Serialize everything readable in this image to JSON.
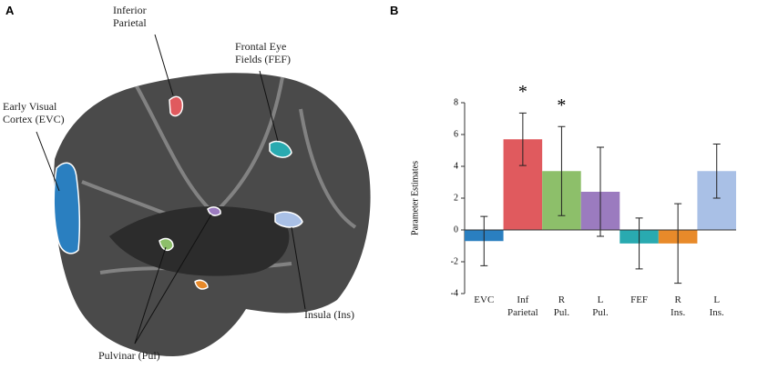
{
  "panel_a": {
    "label": "A",
    "labels": [
      "Inferior\nParietal",
      "Frontal Eye\nFields (FEF)",
      "Early Visual\nCortex (EVC)",
      "Insula (Ins)",
      "Pulvinar (Pul)"
    ]
  },
  "chart_data": {
    "type": "bar",
    "panel_label": "B",
    "ylabel": "Parameter Estimates",
    "categories": [
      "EVC",
      "Inf\nParietal",
      "R\nPul.",
      "L\nPul.",
      "FEF",
      "R\nIns.",
      "L\nIns."
    ],
    "values": [
      -0.7,
      5.7,
      3.7,
      2.4,
      -0.85,
      -0.85,
      3.7
    ],
    "errors": [
      1.55,
      1.65,
      2.8,
      2.8,
      1.6,
      2.5,
      1.7
    ],
    "markers": [
      null,
      "*",
      "*",
      null,
      null,
      null,
      null
    ],
    "colors": [
      "#2a7fc0",
      "#e05a5e",
      "#8dbf6a",
      "#9b7bbf",
      "#29aab0",
      "#e88a2a",
      "#a9c0e6"
    ],
    "ylim": [
      -4,
      8
    ],
    "yticks": [
      -4,
      -2,
      0,
      2,
      4,
      6,
      8
    ]
  }
}
